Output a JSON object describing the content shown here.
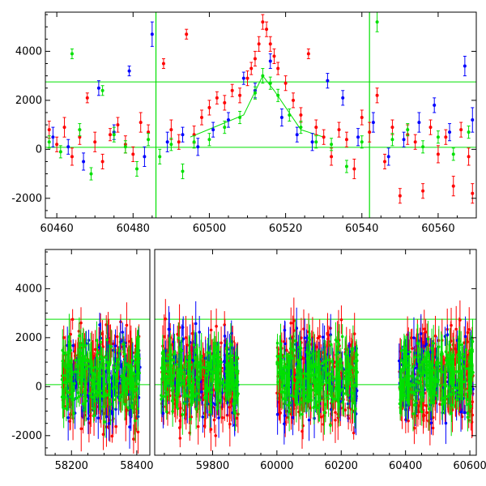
{
  "chart_data": [
    {
      "type": "scatter",
      "title": "",
      "xlabel": "",
      "ylabel": "",
      "xlim": [
        60457,
        60570
      ],
      "ylim": [
        -2800,
        5600
      ],
      "xticks": [
        "60460",
        "60480",
        "60500",
        "60520",
        "60540",
        "60560"
      ],
      "yticks": [
        "-2000",
        "0",
        "2000",
        "4000"
      ],
      "xtick_values": [
        60460,
        60480,
        60500,
        60520,
        60540,
        60560
      ],
      "ytick_values": [
        -2000,
        0,
        2000,
        4000
      ],
      "hlines": [
        {
          "y": 2750,
          "color": "#00e000"
        },
        {
          "y": 80,
          "color": "#00e000"
        }
      ],
      "vlines": [
        {
          "x": 60486,
          "color": "#00e000"
        },
        {
          "x": 60542,
          "color": "#00e000"
        }
      ],
      "trend_lines": [
        {
          "color": "#00e000",
          "points": [
            [
              60495,
              500
            ],
            [
              60509,
              1400
            ],
            [
              60514,
              3000
            ],
            [
              60517,
              2400
            ],
            [
              60524,
              800
            ],
            [
              60530,
              500
            ]
          ]
        }
      ],
      "series": [
        {
          "color": "#ff0000",
          "points": [
            [
              60458,
              800,
              350
            ],
            [
              60460,
              200,
              300
            ],
            [
              60462,
              900,
              400
            ],
            [
              60464,
              -300,
              350
            ],
            [
              60466,
              500,
              300
            ],
            [
              60468,
              2100,
              200
            ],
            [
              60470,
              300,
              400
            ],
            [
              60472,
              -500,
              300
            ],
            [
              60474,
              600,
              250
            ],
            [
              60476,
              1000,
              300
            ],
            [
              60478,
              200,
              350
            ],
            [
              60480,
              -200,
              300
            ],
            [
              60482,
              1100,
              400
            ],
            [
              60484,
              700,
              300
            ],
            [
              60488,
              3500,
              200
            ],
            [
              60490,
              800,
              400
            ],
            [
              60492,
              300,
              300
            ],
            [
              60494,
              4700,
              200
            ],
            [
              60496,
              600,
              350
            ],
            [
              60498,
              1300,
              300
            ],
            [
              60500,
              1700,
              300
            ],
            [
              60502,
              2100,
              250
            ],
            [
              60504,
              1900,
              300
            ],
            [
              60506,
              2400,
              250
            ],
            [
              60508,
              2200,
              300
            ],
            [
              60510,
              2900,
              300
            ],
            [
              60511,
              3300,
              250
            ],
            [
              60512,
              3700,
              300
            ],
            [
              60513,
              4300,
              300
            ],
            [
              60514,
              5200,
              300
            ],
            [
              60515,
              4900,
              300
            ],
            [
              60516,
              4300,
              300
            ],
            [
              60517,
              3800,
              300
            ],
            [
              60518,
              3300,
              250
            ],
            [
              60520,
              2700,
              300
            ],
            [
              60522,
              2000,
              300
            ],
            [
              60524,
              1400,
              300
            ],
            [
              60526,
              3900,
              200
            ],
            [
              60528,
              900,
              300
            ],
            [
              60530,
              500,
              300
            ],
            [
              60532,
              -300,
              350
            ],
            [
              60534,
              800,
              300
            ],
            [
              60536,
              400,
              300
            ],
            [
              60538,
              -800,
              400
            ],
            [
              60540,
              1300,
              300
            ],
            [
              60542,
              700,
              400
            ],
            [
              60544,
              2200,
              300
            ],
            [
              60546,
              -500,
              300
            ],
            [
              60548,
              900,
              300
            ],
            [
              60550,
              -1900,
              300
            ],
            [
              60552,
              600,
              400
            ],
            [
              60554,
              300,
              300
            ],
            [
              60556,
              -1700,
              300
            ],
            [
              60558,
              900,
              300
            ],
            [
              60560,
              -200,
              350
            ],
            [
              60562,
              500,
              300
            ],
            [
              60564,
              -1500,
              400
            ],
            [
              60566,
              800,
              300
            ],
            [
              60568,
              -300,
              350
            ],
            [
              60569,
              -1800,
              400
            ]
          ]
        },
        {
          "color": "#0000ff",
          "points": [
            [
              60459,
              500,
              400
            ],
            [
              60463,
              100,
              300
            ],
            [
              60467,
              -500,
              350
            ],
            [
              60471,
              2500,
              300
            ],
            [
              60475,
              700,
              300
            ],
            [
              60479,
              3200,
              200
            ],
            [
              60483,
              -300,
              400
            ],
            [
              60485,
              4700,
              500
            ],
            [
              60489,
              300,
              400
            ],
            [
              60493,
              600,
              300
            ],
            [
              60497,
              100,
              350
            ],
            [
              60501,
              800,
              300
            ],
            [
              60505,
              1200,
              300
            ],
            [
              60509,
              2900,
              250
            ],
            [
              60512,
              2400,
              300
            ],
            [
              60516,
              3600,
              300
            ],
            [
              60519,
              1300,
              350
            ],
            [
              60523,
              600,
              300
            ],
            [
              60527,
              300,
              350
            ],
            [
              60531,
              2800,
              300
            ],
            [
              60535,
              2100,
              300
            ],
            [
              60539,
              500,
              350
            ],
            [
              60543,
              1100,
              400
            ],
            [
              60547,
              -300,
              350
            ],
            [
              60551,
              400,
              300
            ],
            [
              60555,
              1100,
              400
            ],
            [
              60559,
              1800,
              300
            ],
            [
              60563,
              700,
              350
            ],
            [
              60567,
              3400,
              400
            ],
            [
              60569,
              1200,
              500
            ]
          ]
        },
        {
          "color": "#00e000",
          "points": [
            [
              60458,
              300,
              250
            ],
            [
              60461,
              -100,
              250
            ],
            [
              60464,
              3900,
              200
            ],
            [
              60466,
              800,
              250
            ],
            [
              60469,
              -1000,
              250
            ],
            [
              60472,
              2400,
              200
            ],
            [
              60475,
              600,
              300
            ],
            [
              60478,
              100,
              250
            ],
            [
              60481,
              -800,
              300
            ],
            [
              60484,
              400,
              250
            ],
            [
              60487,
              -300,
              300
            ],
            [
              60490,
              200,
              250
            ],
            [
              60493,
              -900,
              300
            ],
            [
              60496,
              300,
              250
            ],
            [
              60500,
              400,
              250
            ],
            [
              60504,
              900,
              250
            ],
            [
              60508,
              1300,
              250
            ],
            [
              60512,
              2300,
              250
            ],
            [
              60514,
              3000,
              300
            ],
            [
              60516,
              2700,
              250
            ],
            [
              60518,
              2200,
              250
            ],
            [
              60521,
              1400,
              250
            ],
            [
              60524,
              900,
              250
            ],
            [
              60528,
              300,
              250
            ],
            [
              60532,
              200,
              250
            ],
            [
              60536,
              -700,
              250
            ],
            [
              60540,
              300,
              250
            ],
            [
              60544,
              5200,
              400
            ],
            [
              60548,
              400,
              250
            ],
            [
              60552,
              800,
              250
            ],
            [
              60556,
              100,
              250
            ],
            [
              60560,
              500,
              250
            ],
            [
              60564,
              -200,
              250
            ],
            [
              60568,
              700,
              250
            ]
          ]
        }
      ]
    },
    {
      "type": "scatter",
      "title": "",
      "xlabel": "",
      "ylabel": "",
      "ylim": [
        -2800,
        5600
      ],
      "xticks": [
        "58200",
        "58400",
        "59800",
        "60000",
        "60200",
        "60400",
        "60600"
      ],
      "yticks": [
        "-2000",
        "0",
        "2000",
        "4000"
      ],
      "ytick_values": [
        -2000,
        0,
        2000,
        4000
      ],
      "axis_break": "between 58400 and 59800 (separate segment)",
      "segments": [
        {
          "xlim": [
            58120,
            58440
          ],
          "ticks": [
            58200,
            58400
          ],
          "clusters": [
            [
              58170,
              58410
            ]
          ]
        },
        {
          "xlim": [
            59620,
            60620
          ],
          "ticks": [
            59800,
            60000,
            60200,
            60400,
            60600
          ],
          "clusters": [
            [
              59640,
              59880
            ],
            [
              60000,
              60250
            ],
            [
              60380,
              60610
            ]
          ]
        }
      ],
      "hlines": [
        {
          "y": 2750,
          "color": "#00e000"
        },
        {
          "y": 80,
          "color": "#00e000"
        }
      ],
      "note": "Dense clusters of red, blue and green error-bar points spanning roughly -2800 to 5600"
    }
  ]
}
